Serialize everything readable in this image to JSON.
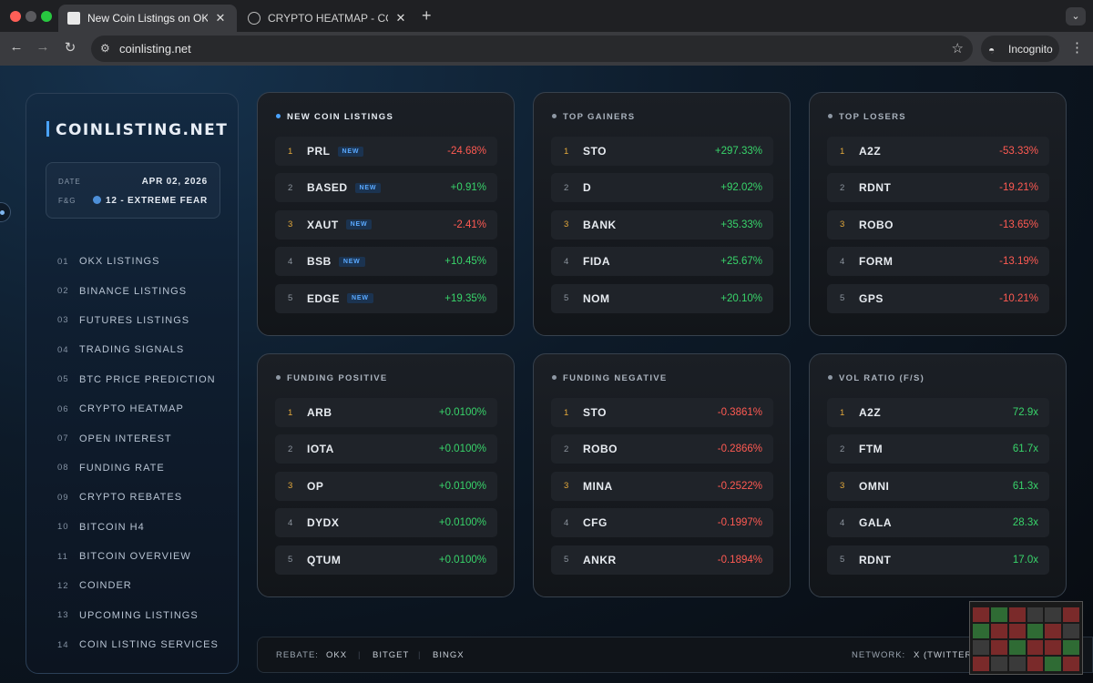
{
  "browser": {
    "tabs": [
      {
        "title": "New Coin Listings on OKX, Bi",
        "active": true
      },
      {
        "title": "CRYPTO HEATMAP - COINLIS",
        "active": false
      }
    ],
    "url": "coinlisting.net",
    "profile_label": "Incognito"
  },
  "sidebar": {
    "brand": "COINLISTING.NET",
    "date_label": "DATE",
    "date_value": "APR 02, 2026",
    "fg_label": "F&G",
    "fg_value": "12 - EXTREME FEAR",
    "menu": [
      {
        "num": "01",
        "label": "OKX LISTINGS"
      },
      {
        "num": "02",
        "label": "BINANCE LISTINGS"
      },
      {
        "num": "03",
        "label": "FUTURES LISTINGS"
      },
      {
        "num": "04",
        "label": "TRADING SIGNALS"
      },
      {
        "num": "05",
        "label": "BTC PRICE PREDICTION"
      },
      {
        "num": "06",
        "label": "CRYPTO HEATMAP"
      },
      {
        "num": "07",
        "label": "OPEN INTEREST"
      },
      {
        "num": "08",
        "label": "FUNDING RATE"
      },
      {
        "num": "09",
        "label": "CRYPTO REBATES"
      },
      {
        "num": "10",
        "label": "BITCOIN H4"
      },
      {
        "num": "11",
        "label": "BITCOIN OVERVIEW"
      },
      {
        "num": "12",
        "label": "COINDER"
      },
      {
        "num": "13",
        "label": "UPCOMING LISTINGS"
      },
      {
        "num": "14",
        "label": "COIN LISTING SERVICES"
      }
    ]
  },
  "cards": [
    {
      "title": "NEW COIN LISTINGS",
      "rows": [
        {
          "rank": "1",
          "symbol": "PRL",
          "badge": "NEW",
          "value": "-24.68%",
          "trend": "neg"
        },
        {
          "rank": "2",
          "symbol": "BASED",
          "badge": "NEW",
          "value": "+0.91%",
          "trend": "pos"
        },
        {
          "rank": "3",
          "symbol": "XAUT",
          "badge": "NEW",
          "value": "-2.41%",
          "trend": "neg"
        },
        {
          "rank": "4",
          "symbol": "BSB",
          "badge": "NEW",
          "value": "+10.45%",
          "trend": "pos"
        },
        {
          "rank": "5",
          "symbol": "EDGE",
          "badge": "NEW",
          "value": "+19.35%",
          "trend": "pos"
        }
      ]
    },
    {
      "title": "TOP GAINERS",
      "rows": [
        {
          "rank": "1",
          "symbol": "STO",
          "value": "+297.33%",
          "trend": "pos"
        },
        {
          "rank": "2",
          "symbol": "D",
          "value": "+92.02%",
          "trend": "pos"
        },
        {
          "rank": "3",
          "symbol": "BANK",
          "value": "+35.33%",
          "trend": "pos"
        },
        {
          "rank": "4",
          "symbol": "FIDA",
          "value": "+25.67%",
          "trend": "pos"
        },
        {
          "rank": "5",
          "symbol": "NOM",
          "value": "+20.10%",
          "trend": "pos"
        }
      ]
    },
    {
      "title": "TOP LOSERS",
      "rows": [
        {
          "rank": "1",
          "symbol": "A2Z",
          "value": "-53.33%",
          "trend": "neg"
        },
        {
          "rank": "2",
          "symbol": "RDNT",
          "value": "-19.21%",
          "trend": "neg"
        },
        {
          "rank": "3",
          "symbol": "ROBO",
          "value": "-13.65%",
          "trend": "neg"
        },
        {
          "rank": "4",
          "symbol": "FORM",
          "value": "-13.19%",
          "trend": "neg"
        },
        {
          "rank": "5",
          "symbol": "GPS",
          "value": "-10.21%",
          "trend": "neg"
        }
      ]
    },
    {
      "title": "FUNDING POSITIVE",
      "rows": [
        {
          "rank": "1",
          "symbol": "ARB",
          "value": "+0.0100%",
          "trend": "pos"
        },
        {
          "rank": "2",
          "symbol": "IOTA",
          "value": "+0.0100%",
          "trend": "pos"
        },
        {
          "rank": "3",
          "symbol": "OP",
          "value": "+0.0100%",
          "trend": "pos"
        },
        {
          "rank": "4",
          "symbol": "DYDX",
          "value": "+0.0100%",
          "trend": "pos"
        },
        {
          "rank": "5",
          "symbol": "QTUM",
          "value": "+0.0100%",
          "trend": "pos"
        }
      ]
    },
    {
      "title": "FUNDING NEGATIVE",
      "rows": [
        {
          "rank": "1",
          "symbol": "STO",
          "value": "-0.3861%",
          "trend": "neg"
        },
        {
          "rank": "2",
          "symbol": "ROBO",
          "value": "-0.2866%",
          "trend": "neg"
        },
        {
          "rank": "3",
          "symbol": "MINA",
          "value": "-0.2522%",
          "trend": "neg"
        },
        {
          "rank": "4",
          "symbol": "CFG",
          "value": "-0.1997%",
          "trend": "neg"
        },
        {
          "rank": "5",
          "symbol": "ANKR",
          "value": "-0.1894%",
          "trend": "neg"
        }
      ]
    },
    {
      "title": "VOL RATIO (F/S)",
      "rows": [
        {
          "rank": "1",
          "symbol": "A2Z",
          "value": "72.9x",
          "trend": "pos"
        },
        {
          "rank": "2",
          "symbol": "FTM",
          "value": "61.7x",
          "trend": "pos"
        },
        {
          "rank": "3",
          "symbol": "OMNI",
          "value": "61.3x",
          "trend": "pos"
        },
        {
          "rank": "4",
          "symbol": "GALA",
          "value": "28.3x",
          "trend": "pos"
        },
        {
          "rank": "5",
          "symbol": "RDNT",
          "value": "17.0x",
          "trend": "pos"
        }
      ]
    }
  ],
  "footer": {
    "rebate_label": "REBATE:",
    "rebate_links": [
      "OKX",
      "BITGET",
      "BINGX"
    ],
    "network_label": "NETWORK:",
    "network_link": "X (TWITTER)"
  },
  "colors": {
    "positive": "#38d46a",
    "negative": "#ff5a52",
    "accent": "#4aa3ff",
    "rank_top": "#e4a93b"
  }
}
